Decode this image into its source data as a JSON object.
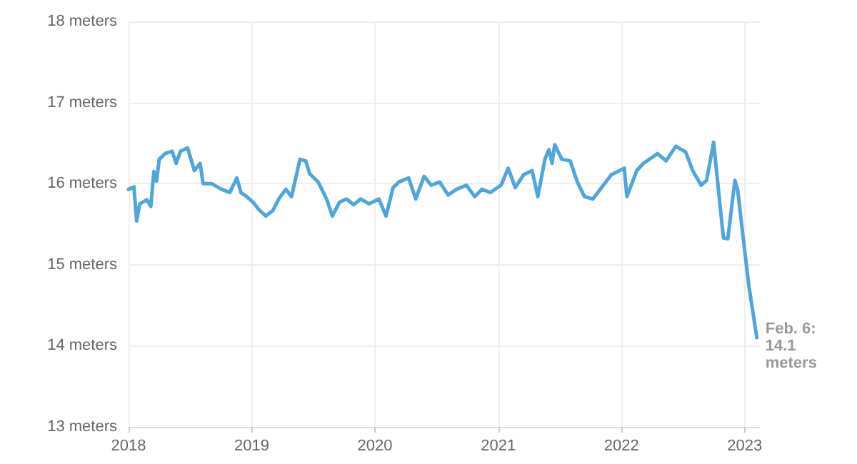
{
  "chart_data": {
    "type": "line",
    "x": [
      "2018-01-01",
      "2018-01-17",
      "2018-01-25",
      "2018-02-03",
      "2018-02-24",
      "2018-03-08",
      "2018-03-17",
      "2018-03-25",
      "2018-04-02",
      "2018-04-19",
      "2018-05-10",
      "2018-05-22",
      "2018-06-04",
      "2018-06-25",
      "2018-07-15",
      "2018-08-01",
      "2018-08-10",
      "2018-09-04",
      "2018-10-03",
      "2018-10-28",
      "2018-11-18",
      "2018-11-30",
      "2018-12-17",
      "2019-01-05",
      "2019-01-22",
      "2019-02-12",
      "2019-03-05",
      "2019-03-22",
      "2019-04-12",
      "2019-04-29",
      "2019-05-24",
      "2019-06-10",
      "2019-06-22",
      "2019-07-17",
      "2019-08-11",
      "2019-08-28",
      "2019-09-18",
      "2019-10-09",
      "2019-10-30",
      "2019-11-20",
      "2019-12-15",
      "2020-01-13",
      "2020-02-03",
      "2020-02-24",
      "2020-03-12",
      "2020-04-10",
      "2020-05-01",
      "2020-05-26",
      "2020-06-16",
      "2020-07-11",
      "2020-08-05",
      "2020-08-30",
      "2020-09-28",
      "2020-10-23",
      "2020-11-13",
      "2020-12-08",
      "2021-01-09",
      "2021-01-30",
      "2021-02-20",
      "2021-03-17",
      "2021-04-11",
      "2021-04-28",
      "2021-05-19",
      "2021-05-31",
      "2021-06-09",
      "2021-06-17",
      "2021-07-08",
      "2021-08-02",
      "2021-08-23",
      "2021-09-13",
      "2021-10-08",
      "2021-12-02",
      "2022-01-09",
      "2022-01-17",
      "2022-02-15",
      "2022-03-07",
      "2022-04-18",
      "2022-05-13",
      "2022-06-11",
      "2022-07-10",
      "2022-07-31",
      "2022-08-25",
      "2022-09-10",
      "2022-10-01",
      "2022-10-18",
      "2022-10-30",
      "2022-11-12",
      "2022-12-03",
      "2022-12-11",
      "2022-12-24",
      "2023-01-13",
      "2023-02-06"
    ],
    "series": [
      {
        "color": "#4ea6dc",
        "values": [
          15.93,
          15.96,
          15.54,
          15.75,
          15.8,
          15.72,
          16.15,
          16.03,
          16.3,
          16.37,
          16.4,
          16.25,
          16.4,
          16.44,
          16.16,
          16.25,
          16.0,
          16.0,
          15.93,
          15.89,
          16.07,
          15.89,
          15.84,
          15.77,
          15.68,
          15.6,
          15.67,
          15.81,
          15.93,
          15.84,
          16.3,
          16.28,
          16.12,
          16.02,
          15.81,
          15.6,
          15.77,
          15.81,
          15.74,
          15.81,
          15.75,
          15.81,
          15.6,
          15.95,
          16.02,
          16.07,
          15.81,
          16.09,
          15.98,
          16.02,
          15.86,
          15.93,
          15.98,
          15.84,
          15.93,
          15.89,
          15.98,
          16.19,
          15.95,
          16.11,
          16.16,
          15.84,
          16.3,
          16.42,
          16.25,
          16.48,
          16.3,
          16.28,
          16.02,
          15.84,
          15.81,
          16.11,
          16.19,
          15.84,
          16.16,
          16.25,
          16.37,
          16.28,
          16.46,
          16.39,
          16.16,
          15.98,
          16.04,
          16.51,
          15.81,
          15.33,
          15.32,
          16.04,
          15.93,
          15.46,
          14.75,
          14.1
        ]
      }
    ],
    "xlim": [
      "2018-01-01",
      "2023-02-15"
    ],
    "xticks": [
      {
        "value": "2018-01-01",
        "label": "2018"
      },
      {
        "value": "2019-01-01",
        "label": "2019"
      },
      {
        "value": "2020-01-01",
        "label": "2020"
      },
      {
        "value": "2021-01-01",
        "label": "2021"
      },
      {
        "value": "2022-01-01",
        "label": "2022"
      },
      {
        "value": "2023-01-01",
        "label": "2023"
      }
    ],
    "ylim": [
      13,
      18
    ],
    "yticks": [
      {
        "value": 13,
        "label": "13 meters"
      },
      {
        "value": 14,
        "label": "14 meters"
      },
      {
        "value": 15,
        "label": "15 meters"
      },
      {
        "value": 16,
        "label": "16 meters"
      },
      {
        "value": 17,
        "label": "17 meters"
      },
      {
        "value": 18,
        "label": "18 meters"
      }
    ],
    "grid": true,
    "marker": "none",
    "line_style": "solid",
    "annotations": [
      {
        "text": "Feb. 6: 14.1 meters",
        "x": "2023-02-06",
        "y": 14.1
      }
    ]
  }
}
